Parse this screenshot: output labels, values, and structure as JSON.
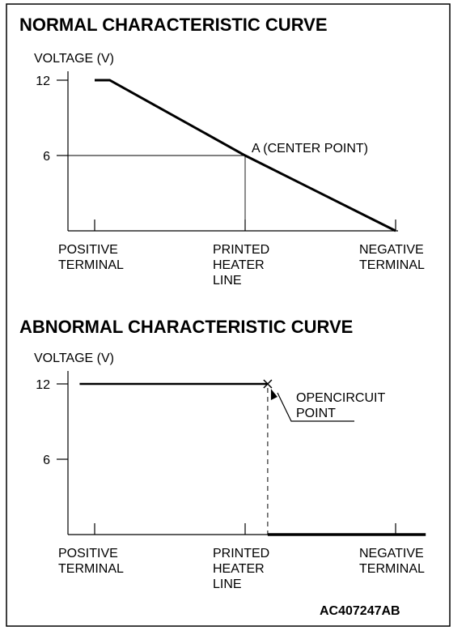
{
  "figure_code": "AC407247AB",
  "chart_data": [
    {
      "type": "line",
      "title": "NORMAL CHARACTERISTIC CURVE",
      "ylabel": "VOLTAGE (V)",
      "yticks": [
        6,
        12
      ],
      "ylim": [
        0,
        13.5
      ],
      "categories": [
        [
          "POSITIVE",
          "TERMINAL"
        ],
        [
          "PRINTED",
          "HEATER",
          "LINE"
        ],
        [
          "NEGATIVE",
          "TERMINAL"
        ]
      ],
      "x": [
        0,
        0.1,
        1.0,
        2.0
      ],
      "series": [
        {
          "values": [
            12,
            12,
            6,
            0
          ]
        }
      ],
      "annotation": {
        "text": "A (CENTER POINT)",
        "x": 1.0,
        "y": 6
      },
      "guides": {
        "x": 1.0,
        "y": 6
      }
    },
    {
      "type": "line",
      "title": "ABNORMAL CHARACTERISTIC CURVE",
      "ylabel": "VOLTAGE (V)",
      "yticks": [
        6,
        12
      ],
      "ylim": [
        0,
        13.5
      ],
      "categories": [
        [
          "POSITIVE",
          "TERMINAL"
        ],
        [
          "PRINTED",
          "HEATER",
          "LINE"
        ],
        [
          "NEGATIVE",
          "TERMINAL"
        ]
      ],
      "series": [
        {
          "x": [
            -0.1,
            1.15
          ],
          "values": [
            12,
            12
          ]
        },
        {
          "x": [
            1.15,
            2.2
          ],
          "values": [
            0,
            0
          ]
        }
      ],
      "annotation": {
        "lines": [
          "OPENCIRCUIT",
          "POINT"
        ],
        "x": 1.15,
        "y": 12
      },
      "guides": {
        "x": 1.15
      }
    }
  ]
}
